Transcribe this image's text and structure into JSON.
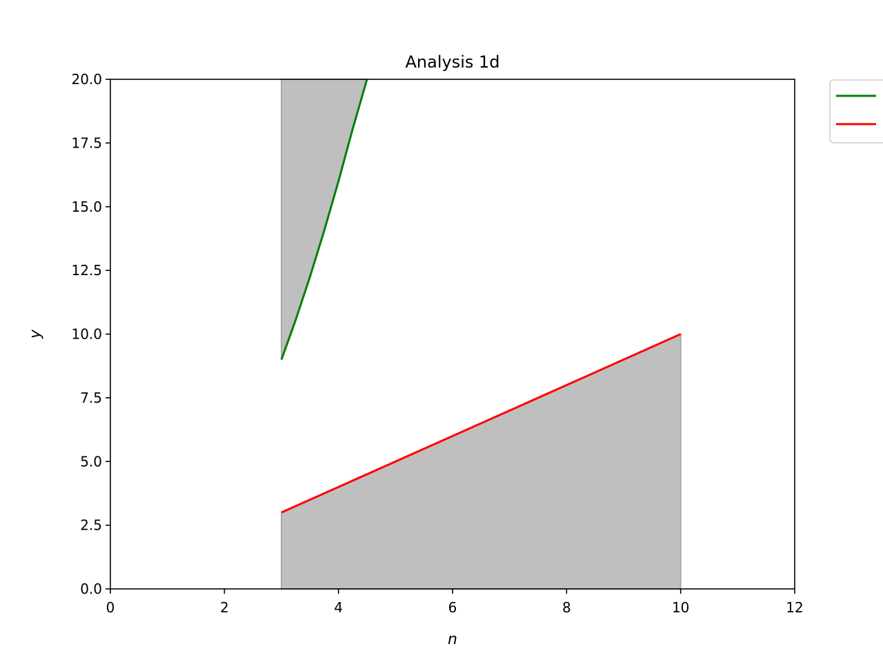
{
  "chart_data": {
    "type": "line",
    "title": "Analysis 1d",
    "xlabel": "n",
    "ylabel": "y",
    "xlim": [
      0,
      12
    ],
    "ylim": [
      0,
      20
    ],
    "x_ticks": [
      {
        "value": 0,
        "label": "0"
      },
      {
        "value": 2,
        "label": "2"
      },
      {
        "value": 4,
        "label": "4"
      },
      {
        "value": 6,
        "label": "6"
      },
      {
        "value": 8,
        "label": "8"
      },
      {
        "value": 10,
        "label": "10"
      },
      {
        "value": 12,
        "label": "12"
      }
    ],
    "y_ticks": [
      {
        "value": 0,
        "label": "0.0"
      },
      {
        "value": 2.5,
        "label": "2.5"
      },
      {
        "value": 5,
        "label": "5.0"
      },
      {
        "value": 7.5,
        "label": "7.5"
      },
      {
        "value": 10,
        "label": "10.0"
      },
      {
        "value": 12.5,
        "label": "12.5"
      },
      {
        "value": 15,
        "label": "15.0"
      },
      {
        "value": 17.5,
        "label": "17.5"
      },
      {
        "value": 20,
        "label": "20.0"
      }
    ],
    "grid": false,
    "legend": "outside top-right",
    "series": [
      {
        "color": "#008000",
        "x": [
          3.0,
          3.25,
          3.5,
          3.75,
          4.0,
          4.25,
          4.5
        ],
        "y": [
          9.0,
          10.56,
          12.25,
          14.06,
          16.0,
          18.06,
          20.0
        ],
        "fill": "above",
        "fill_color": "#bfbfbf"
      },
      {
        "color": "#ff0000",
        "x": [
          3,
          10
        ],
        "y": [
          3,
          10
        ],
        "fill": "below",
        "fill_color": "#bfbfbf"
      }
    ]
  }
}
